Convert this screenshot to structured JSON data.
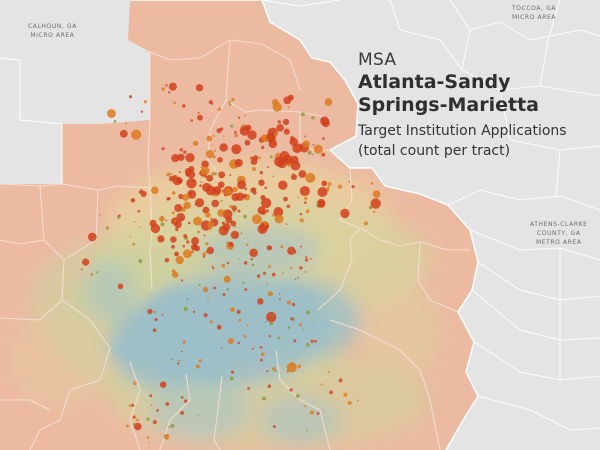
{
  "title": {
    "kicker": "MSA",
    "name_lines": [
      "Atlanta-Sandy",
      "Springs-Marietta"
    ],
    "subtitle_lines": [
      "Target Institution Applications",
      "(total count per tract)"
    ]
  },
  "region_labels": [
    {
      "id": "calhoun",
      "lines": [
        "CALHOUN, GA",
        "MICRO AREA"
      ]
    },
    {
      "id": "toccoa",
      "lines": [
        "TOCCOA, GA",
        "MICRO AREA"
      ]
    },
    {
      "id": "athens",
      "lines": [
        "ATHENS-CLARKE",
        "COUNTY, GA",
        "METRO AREA"
      ]
    }
  ],
  "colors": {
    "background": "#e4e4e4",
    "msa_fill": "#eab9a0",
    "county_line": "#ffffff",
    "low_density": "#8fb8c6",
    "mid_density": "#dcd39a",
    "dot_high": "#d2401c",
    "dot_mid": "#dd7a1f",
    "dot_low": "#8a9a3a"
  },
  "legend_encoding": {
    "dot_size": "application count per tract",
    "surface_color": "blue = lower, yellow/orange = higher"
  }
}
